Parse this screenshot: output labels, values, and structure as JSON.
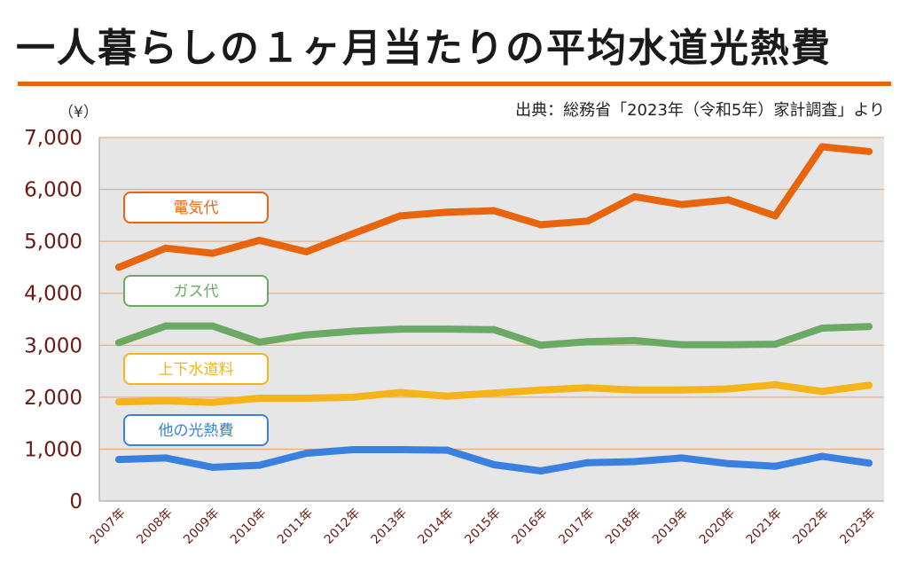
{
  "title": "一人暮らしの１ヶ月当たりの平均水道光熱費",
  "unit": "（¥）",
  "source": "出典：総務省「2023年（令和5年）家計調査」より",
  "colors": {
    "accent": "#e8650e",
    "plot_bg": "#e6e6e6",
    "grid": "#e8a36b",
    "tick_text": "#6b1b14"
  },
  "chart_data": {
    "type": "line",
    "ylim": [
      0,
      7000
    ],
    "yticks": [
      "0",
      "1,000",
      "2,000",
      "3,000",
      "4,000",
      "5,000",
      "6,000",
      "7,000"
    ],
    "ytick_values": [
      0,
      1000,
      2000,
      3000,
      4000,
      5000,
      6000,
      7000
    ],
    "categories": [
      "2007年",
      "2008年",
      "2009年",
      "2010年",
      "2011年",
      "2012年",
      "2013年",
      "2014年",
      "2015年",
      "2016年",
      "2017年",
      "2018年",
      "2019年",
      "2020年",
      "2021年",
      "2022年",
      "2023年"
    ],
    "series": [
      {
        "name": "電気代",
        "color": "#e8650e",
        "values": [
          4500,
          4870,
          4770,
          5020,
          4800,
          5150,
          5490,
          5560,
          5590,
          5320,
          5390,
          5860,
          5710,
          5800,
          5490,
          6820,
          6730
        ]
      },
      {
        "name": "ガス代",
        "color": "#6aaa64",
        "values": [
          3050,
          3370,
          3370,
          3060,
          3200,
          3270,
          3310,
          3310,
          3300,
          3000,
          3070,
          3090,
          3010,
          3010,
          3020,
          3330,
          3360
        ]
      },
      {
        "name": "上下水道料",
        "color": "#f4b41a",
        "values": [
          1910,
          1930,
          1900,
          1980,
          1980,
          2000,
          2090,
          2020,
          2080,
          2140,
          2180,
          2140,
          2140,
          2160,
          2240,
          2110,
          2230
        ]
      },
      {
        "name": "他の光熱費",
        "color": "#3a80e0",
        "values": [
          800,
          830,
          650,
          690,
          920,
          990,
          990,
          980,
          700,
          580,
          740,
          760,
          830,
          720,
          670,
          860,
          730
        ]
      }
    ],
    "grid": true,
    "legend_position": "inside-left"
  }
}
